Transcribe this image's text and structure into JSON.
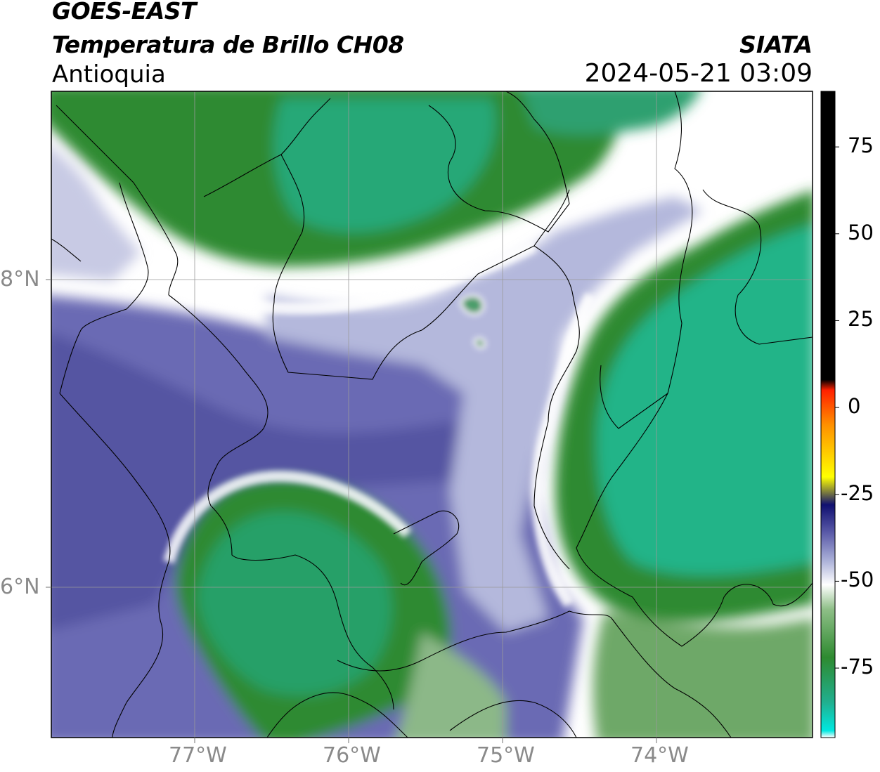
{
  "header": {
    "satellite": "GOES-EAST",
    "product": "Temperatura de Brillo CH08",
    "region": "Antioquia",
    "brand": "SIATA",
    "datetime": "2024-05-21 03:09"
  },
  "map": {
    "lon_ticks": [
      "77°W",
      "76°W",
      "75°W",
      "74°W"
    ],
    "lat_ticks": [
      "8°N",
      "6°N"
    ],
    "extent": {
      "lon": [
        -77.93,
        -72.97
      ],
      "lat": [
        4.95,
        9.15
      ]
    },
    "grid": true
  },
  "colorbar": {
    "ticks": [
      "75",
      "50",
      "25",
      "0",
      "-25",
      "-50",
      "-75"
    ],
    "tick_values": [
      75,
      50,
      25,
      0,
      -25,
      -50,
      -75
    ],
    "range": [
      -95,
      91
    ],
    "stops": [
      {
        "v": -95,
        "color": "#ffffff"
      },
      {
        "v": -93,
        "color": "#00e8e0"
      },
      {
        "v": -85,
        "color": "#20b090"
      },
      {
        "v": -72,
        "color": "#2e8a30"
      },
      {
        "v": -58,
        "color": "#8fbf88"
      },
      {
        "v": -51,
        "color": "#ffffff"
      },
      {
        "v": -44,
        "color": "#aab0d8"
      },
      {
        "v": -36,
        "color": "#5a5aa8"
      },
      {
        "v": -28,
        "color": "#101070"
      },
      {
        "v": -20,
        "color": "#ffff00"
      },
      {
        "v": -5,
        "color": "#ff9000"
      },
      {
        "v": 5,
        "color": "#ff2000"
      },
      {
        "v": 8,
        "color": "#000000"
      },
      {
        "v": 91,
        "color": "#000000"
      }
    ]
  },
  "colors": {
    "cold_green": "#2e8a30",
    "teal": "#20b090",
    "white": "#ffffff",
    "purple": "#5a5aa8",
    "light_purple": "#aab0d8",
    "border": "#000000",
    "grid": "#9a9a9a",
    "axis_text": "#8a8a8a"
  }
}
